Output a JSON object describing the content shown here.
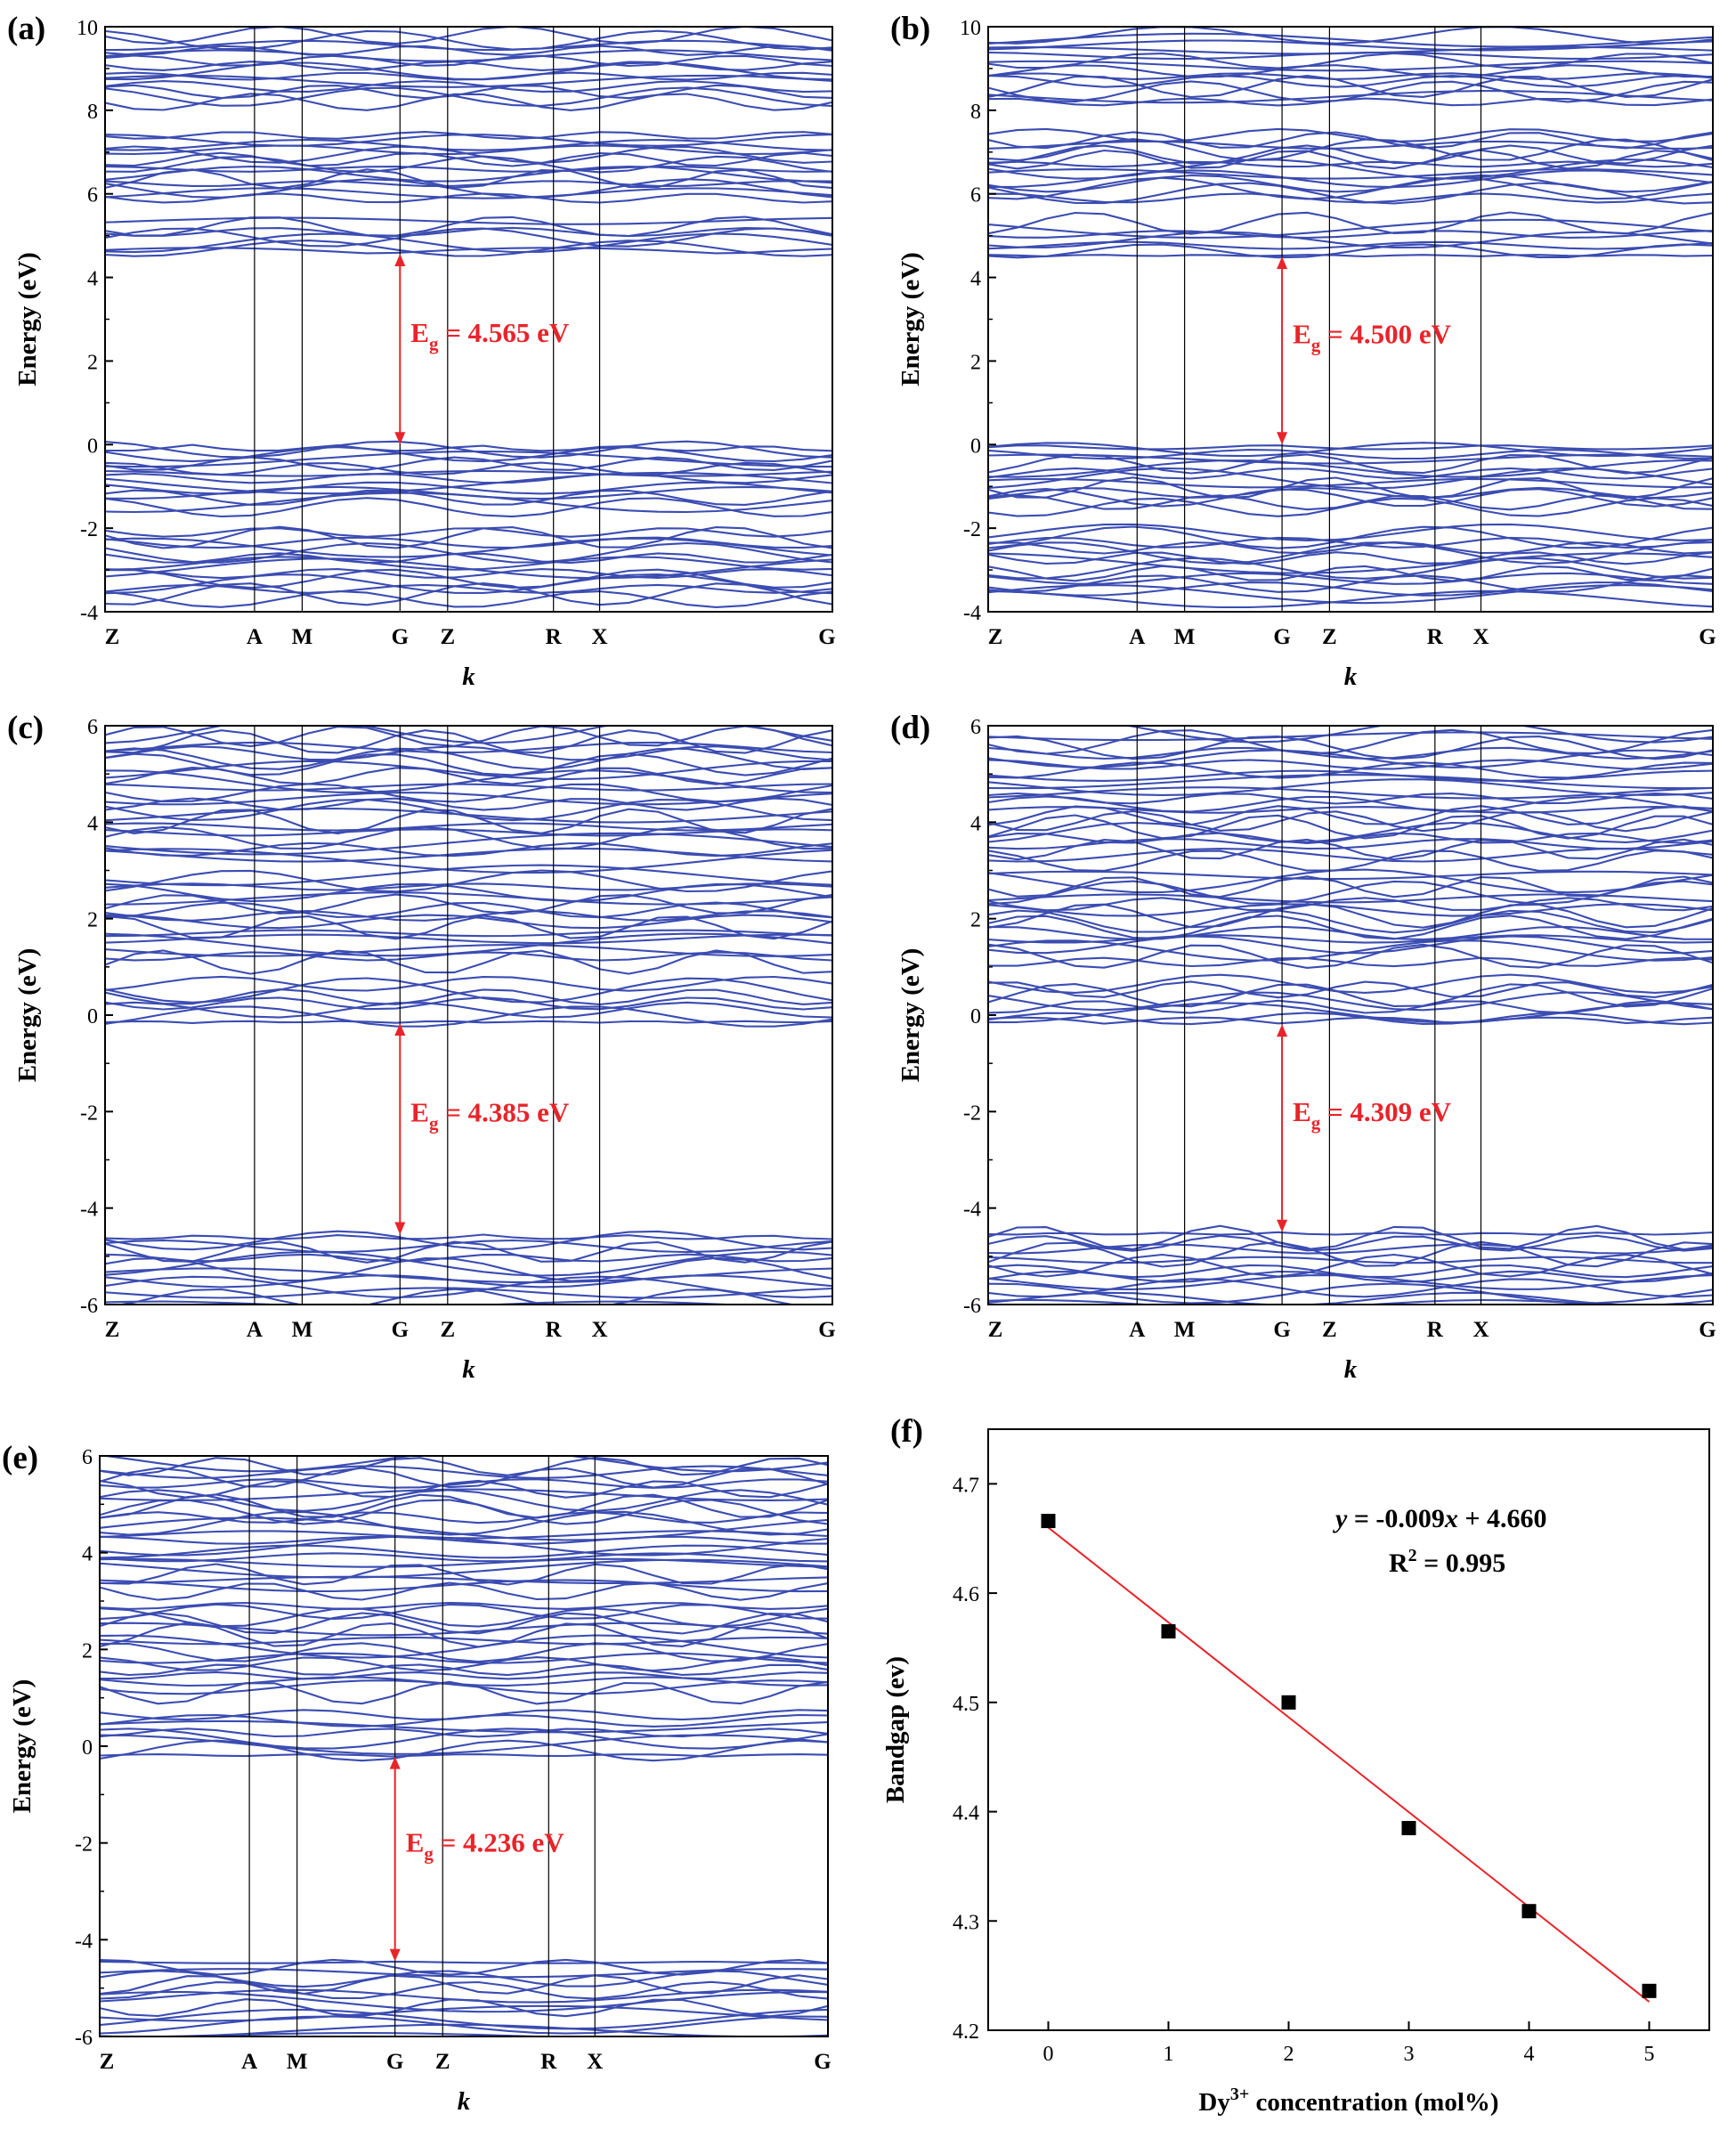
{
  "band_panels": [
    {
      "label": "(a)",
      "yticks": [
        "10",
        "8",
        "6",
        "4",
        "2",
        "0",
        "-2",
        "-4"
      ],
      "ylabel": "Energy (eV)",
      "xlabel": "k",
      "kpoints": [
        "Z",
        "A",
        "M",
        "G",
        "Z",
        "R",
        "X",
        "G"
      ],
      "gap_text": "E",
      "gap_sub": "g",
      "gap_value": " = 4.565 eV"
    },
    {
      "label": "(b)",
      "yticks": [
        "10",
        "8",
        "6",
        "4",
        "2",
        "0",
        "-2",
        "-4"
      ],
      "ylabel": "Energy (eV)",
      "xlabel": "k",
      "kpoints": [
        "Z",
        "A",
        "M",
        "G",
        "Z",
        "R",
        "X",
        "G"
      ],
      "gap_text": "E",
      "gap_sub": "g",
      "gap_value": " = 4.500 eV"
    },
    {
      "label": "(c)",
      "yticks": [
        "6",
        "4",
        "2",
        "0",
        "-2",
        "-4",
        "-6"
      ],
      "ylabel": "Energy (eV)",
      "xlabel": "k",
      "kpoints": [
        "Z",
        "A",
        "M",
        "G",
        "Z",
        "R",
        "X",
        "G"
      ],
      "gap_text": "E",
      "gap_sub": "g",
      "gap_value": " = 4.385 eV"
    },
    {
      "label": "(d)",
      "yticks": [
        "6",
        "4",
        "2",
        "0",
        "-2",
        "-4",
        "-6"
      ],
      "ylabel": "Energy (eV)",
      "xlabel": "k",
      "kpoints": [
        "Z",
        "A",
        "M",
        "G",
        "Z",
        "R",
        "X",
        "G"
      ],
      "gap_text": "E",
      "gap_sub": "g",
      "gap_value": " = 4.309 eV"
    },
    {
      "label": "(e)",
      "yticks": [
        "6",
        "4",
        "2",
        "0",
        "-2",
        "-4",
        "-6"
      ],
      "ylabel": "Energy (eV)",
      "xlabel": "k",
      "kpoints": [
        "Z",
        "A",
        "M",
        "G",
        "Z",
        "R",
        "X",
        "G"
      ],
      "gap_text": "E",
      "gap_sub": "g",
      "gap_value": " = 4.236 eV"
    }
  ],
  "scatter_panel": {
    "label": "(f)",
    "ylabel": "Bandgap (ev)",
    "xlabel_pre": "Dy",
    "xlabel_sup": "3+",
    "xlabel_post": " concentration (mol%)",
    "xticks": [
      "0",
      "1",
      "2",
      "3",
      "4",
      "5"
    ],
    "yticks": [
      "4.7",
      "4.6",
      "4.5",
      "4.4",
      "4.3",
      "4.2"
    ],
    "fit_eq_y": "y",
    "fit_eq_mid": " = -0.009",
    "fit_eq_x": "x",
    "fit_eq_end": " + 4.660",
    "r2_pre": "R",
    "r2_sup": "2",
    "r2_post": " = 0.995"
  },
  "chart_data": [
    {
      "type": "line",
      "title": "(a)",
      "xlabel": "k",
      "ylabel": "Energy (eV)",
      "ylim": [
        -4,
        10
      ],
      "x": [
        "Z",
        "A",
        "M",
        "G",
        "Z",
        "R",
        "X",
        "G"
      ],
      "bandgap_eV": 4.565,
      "vbm": 0.0,
      "cbm": 4.565,
      "band_windows_eV": [
        [
          -3.7,
          -2.1
        ],
        [
          -1.5,
          0.0
        ],
        [
          4.565,
          5.35
        ],
        [
          5.9,
          7.4
        ],
        [
          8.2,
          9.8
        ]
      ],
      "colors": {
        "bands": "#3b4cb2",
        "gap": "#e8242a"
      }
    },
    {
      "type": "line",
      "title": "(b)",
      "xlabel": "k",
      "ylabel": "Energy (eV)",
      "ylim": [
        -4,
        10
      ],
      "x": [
        "Z",
        "A",
        "M",
        "G",
        "Z",
        "R",
        "X",
        "G"
      ],
      "bandgap_eV": 4.5,
      "vbm": 0.0,
      "cbm": 4.5,
      "band_windows_eV": [
        [
          -3.7,
          -2.1
        ],
        [
          -1.5,
          0.0
        ],
        [
          4.5,
          5.3
        ],
        [
          5.9,
          7.4
        ],
        [
          8.2,
          9.8
        ]
      ],
      "colors": {
        "bands": "#3b4cb2",
        "gap": "#e8242a"
      }
    },
    {
      "type": "line",
      "title": "(c)",
      "xlabel": "k",
      "ylabel": "Energy (eV)",
      "ylim": [
        -6,
        6
      ],
      "x": [
        "Z",
        "A",
        "M",
        "G",
        "Z",
        "R",
        "X",
        "G"
      ],
      "bandgap_eV": 4.385,
      "vbm": -4.55,
      "cbm": -0.165,
      "band_windows_eV": [
        [
          -6.0,
          -4.55
        ],
        [
          -0.165,
          0.65
        ],
        [
          1.1,
          2.9
        ],
        [
          3.2,
          5.9
        ]
      ],
      "colors": {
        "bands": "#3b4cb2",
        "gap": "#e8242a"
      }
    },
    {
      "type": "line",
      "title": "(d)",
      "xlabel": "k",
      "ylabel": "Energy (eV)",
      "ylim": [
        -6,
        6
      ],
      "x": [
        "Z",
        "A",
        "M",
        "G",
        "Z",
        "R",
        "X",
        "G"
      ],
      "bandgap_eV": 4.309,
      "vbm": -4.5,
      "cbm": -0.19,
      "band_windows_eV": [
        [
          -6.0,
          -4.5
        ],
        [
          -0.19,
          0.65
        ],
        [
          1.1,
          2.9
        ],
        [
          3.2,
          5.9
        ]
      ],
      "colors": {
        "bands": "#3b4cb2",
        "gap": "#e8242a"
      }
    },
    {
      "type": "line",
      "title": "(e)",
      "xlabel": "k",
      "ylabel": "Energy (eV)",
      "ylim": [
        -6,
        6
      ],
      "x": [
        "Z",
        "A",
        "M",
        "G",
        "Z",
        "R",
        "X",
        "G"
      ],
      "bandgap_eV": 4.236,
      "vbm": -4.45,
      "cbm": -0.214,
      "band_windows_eV": [
        [
          -6.0,
          -4.45
        ],
        [
          -0.214,
          0.65
        ],
        [
          1.1,
          2.9
        ],
        [
          3.2,
          5.9
        ]
      ],
      "colors": {
        "bands": "#3b4cb2",
        "gap": "#e8242a"
      }
    },
    {
      "type": "scatter",
      "title": "(f)",
      "xlabel": "Dy3+ concentration (mol%)",
      "ylabel": "Bandgap (ev)",
      "x": [
        0,
        1,
        2,
        3,
        4,
        5
      ],
      "values": [
        4.666,
        4.565,
        4.5,
        4.385,
        4.309,
        4.236
      ],
      "xlim": [
        -0.5,
        5.5
      ],
      "ylim": [
        4.2,
        4.75
      ],
      "fit": {
        "slope": -0.009,
        "intercept": 4.66,
        "r2": 0.995,
        "x_range": [
          0,
          5
        ]
      },
      "colors": {
        "points": "#000000",
        "fit": "#e8242a"
      }
    }
  ]
}
